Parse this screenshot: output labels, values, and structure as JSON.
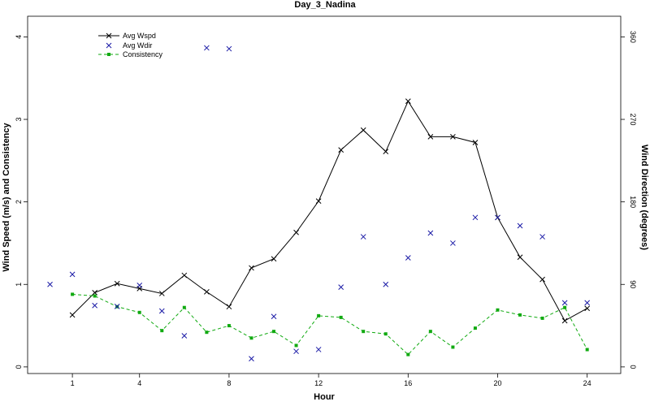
{
  "chart_data": {
    "type": "line",
    "title": "Day_3_Nadina",
    "xlabel": "Hour",
    "ylabel_left": "Wind Speed (m/s) and Consistency",
    "ylabel_right": "Wind Direction (degrees)",
    "xlim": [
      -1,
      25.5
    ],
    "xticks": [
      1,
      4,
      8,
      12,
      16,
      20,
      24
    ],
    "ylim_left": [
      -0.08,
      4.25
    ],
    "yticks_left": [
      0,
      1,
      2,
      3,
      4
    ],
    "ylim_right": [
      -7.2,
      382.5
    ],
    "yticks_right": [
      0,
      90,
      180,
      270,
      360
    ],
    "grid": false,
    "legend_position": "top-left",
    "colors": {
      "avg_wspd": "#000000",
      "avg_wdir": "#1a1aa6",
      "consistency": "#11aa11"
    },
    "series": [
      {
        "name": "Avg Wspd",
        "axis": "left",
        "style": "line-x-marker",
        "x": [
          1,
          2,
          3,
          4,
          5,
          6,
          7,
          8,
          9,
          10,
          11,
          12,
          13,
          14,
          15,
          16,
          17,
          18,
          19,
          20,
          21,
          22,
          23,
          24
        ],
        "values": [
          0.63,
          0.9,
          1.01,
          0.95,
          0.89,
          1.11,
          0.91,
          0.73,
          1.2,
          1.31,
          1.63,
          2.01,
          2.63,
          2.87,
          2.61,
          3.22,
          2.79,
          2.79,
          2.72,
          1.81,
          1.33,
          1.06,
          0.56,
          0.71
        ]
      },
      {
        "name": "Avg Wdir",
        "axis": "right",
        "style": "x-marker",
        "x": [
          0,
          1,
          2,
          3,
          4,
          5,
          6,
          7,
          8,
          9,
          10,
          11,
          12,
          13,
          14,
          15,
          16,
          17,
          18,
          19,
          20,
          21,
          22,
          23,
          24
        ],
        "values": [
          90,
          101,
          67,
          66,
          89,
          61,
          34,
          348,
          347,
          9,
          55,
          17,
          19,
          87,
          142,
          90,
          119,
          146,
          135,
          163,
          163,
          154,
          142,
          70,
          70
        ]
      },
      {
        "name": "Consistency",
        "axis": "left",
        "style": "dashed-square-marker",
        "x": [
          1,
          2,
          3,
          4,
          5,
          6,
          7,
          8,
          9,
          10,
          11,
          12,
          13,
          14,
          15,
          16,
          17,
          18,
          19,
          20,
          21,
          22,
          23,
          24
        ],
        "values": [
          0.88,
          0.86,
          0.73,
          0.66,
          0.44,
          0.72,
          0.42,
          0.5,
          0.35,
          0.43,
          0.26,
          0.62,
          0.6,
          0.43,
          0.4,
          0.15,
          0.43,
          0.24,
          0.47,
          0.69,
          0.63,
          0.59,
          0.72,
          0.21
        ]
      }
    ]
  }
}
